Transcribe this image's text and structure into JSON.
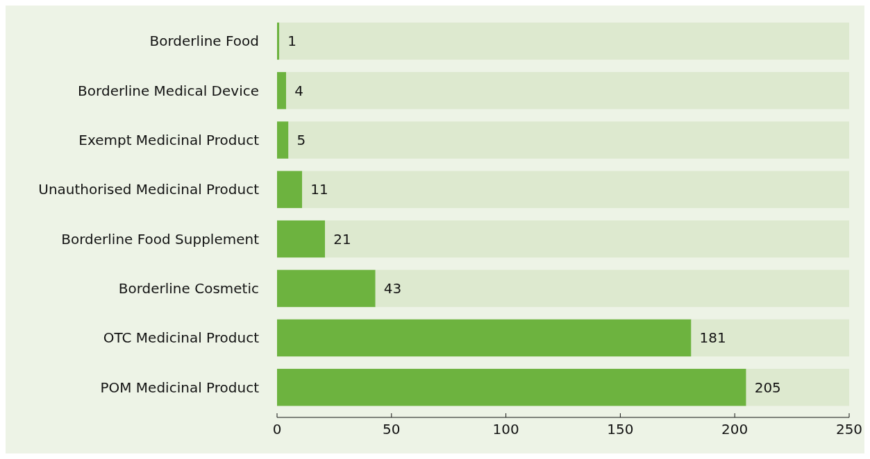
{
  "chart_data": {
    "type": "bar",
    "orientation": "horizontal",
    "stacked": true,
    "categories": [
      "Borderline Food",
      "Borderline Medical Device",
      "Exempt Medicinal Product",
      "Unauthorised Medicinal Product",
      "Borderline Food Supplement",
      "Borderline Cosmetic",
      "OTC Medicinal Product",
      "POM Medicinal Product"
    ],
    "series": [
      {
        "color": "#6db33f",
        "values": [
          1,
          4,
          5,
          11,
          21,
          43,
          181,
          205
        ],
        "value_labels": [
          "1",
          "4",
          "5",
          "11",
          "21",
          "43",
          "181",
          "205"
        ]
      },
      {
        "color": "#dde9cf",
        "values": [
          249,
          246,
          245,
          239,
          229,
          207,
          69,
          45
        ]
      }
    ],
    "xlim": [
      0,
      250
    ],
    "xticks": [
      0,
      50,
      100,
      150,
      200,
      250
    ],
    "grid": false
  }
}
